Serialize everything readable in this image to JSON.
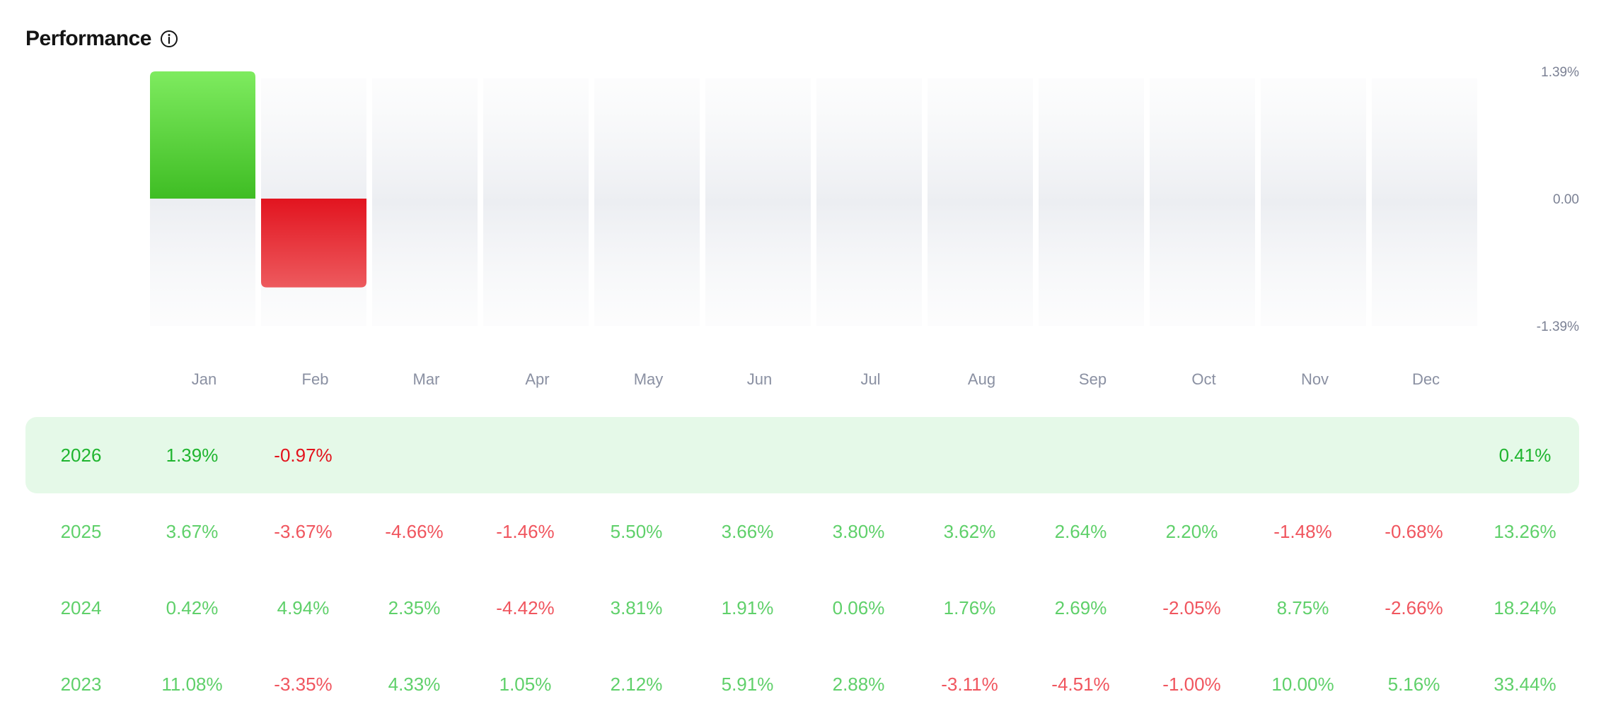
{
  "header": {
    "title": "Performance",
    "info_icon": "info-icon"
  },
  "colors": {
    "positive": "#5fd06a",
    "negative": "#f0555e",
    "current_row_bg": "#e5f9e8"
  },
  "chart_data": {
    "type": "bar",
    "categories": [
      "Jan",
      "Feb",
      "Mar",
      "Apr",
      "May",
      "Jun",
      "Jul",
      "Aug",
      "Sep",
      "Oct",
      "Nov",
      "Dec"
    ],
    "values": [
      1.39,
      -0.97,
      null,
      null,
      null,
      null,
      null,
      null,
      null,
      null,
      null,
      null
    ],
    "ylim": [
      -1.39,
      1.39
    ],
    "yticks": [
      "1.39%",
      "0.00",
      "-1.39%"
    ],
    "ytick_values": [
      1.39,
      0,
      -1.39
    ],
    "title": "",
    "xlabel": "",
    "ylabel": ""
  },
  "table": {
    "rows": [
      {
        "year": "2026",
        "current": true,
        "months": [
          "1.39%",
          "-0.97%",
          "",
          "",
          "",
          "",
          "",
          "",
          "",
          "",
          "",
          ""
        ],
        "total": "0.41%"
      },
      {
        "year": "2025",
        "current": false,
        "months": [
          "3.67%",
          "-3.67%",
          "-4.66%",
          "-1.46%",
          "5.50%",
          "3.66%",
          "3.80%",
          "3.62%",
          "2.64%",
          "2.20%",
          "-1.48%",
          "-0.68%"
        ],
        "total": "13.26%"
      },
      {
        "year": "2024",
        "current": false,
        "months": [
          "0.42%",
          "4.94%",
          "2.35%",
          "-4.42%",
          "3.81%",
          "1.91%",
          "0.06%",
          "1.76%",
          "2.69%",
          "-2.05%",
          "8.75%",
          "-2.66%"
        ],
        "total": "18.24%"
      },
      {
        "year": "2023",
        "current": false,
        "months": [
          "11.08%",
          "-3.35%",
          "4.33%",
          "1.05%",
          "2.12%",
          "5.91%",
          "2.88%",
          "-3.11%",
          "-4.51%",
          "-1.00%",
          "10.00%",
          "5.16%"
        ],
        "total": "33.44%"
      }
    ]
  }
}
